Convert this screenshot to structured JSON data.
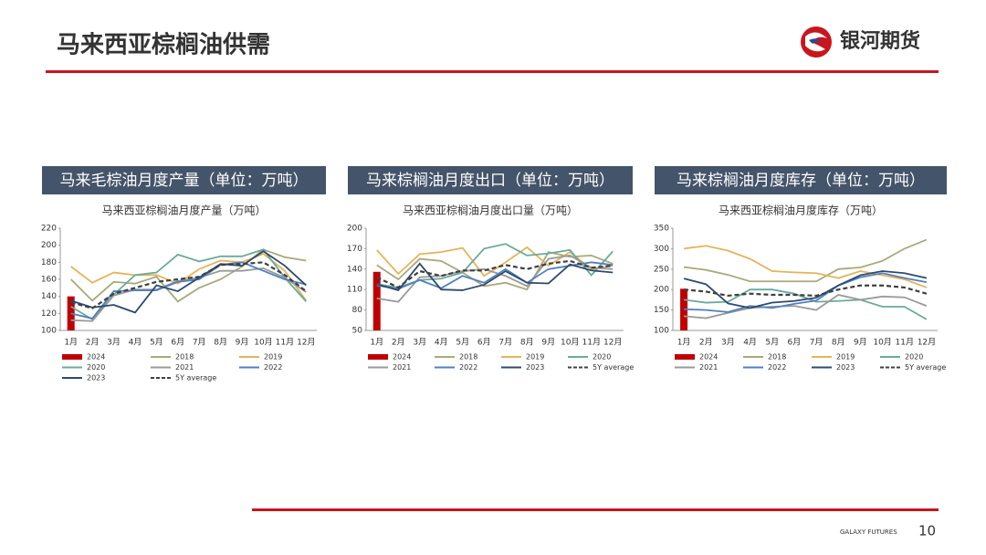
{
  "header": {
    "title": "马来西亚棕榈油供需",
    "logo": "银河期货"
  },
  "footer": {
    "brand": "GALAXY FUTURES",
    "page": "10"
  },
  "chart_data": [
    {
      "type": "line",
      "panel_title": "马来毛棕油月度产量（单位：万吨）",
      "title": "马来西亚棕榈油月度产量（万吨）",
      "categories": [
        "1月",
        "2月",
        "3月",
        "4月",
        "5月",
        "6月",
        "7月",
        "8月",
        "9月",
        "10月",
        "11月",
        "12月"
      ],
      "ylim": [
        100,
        220
      ],
      "yticks": [
        100,
        120,
        140,
        160,
        180,
        200,
        220
      ],
      "legend_columns": 3,
      "series": [
        {
          "name": "2024",
          "color": "#c00000",
          "mark": "bar",
          "values": [
            140,
            null,
            null,
            null,
            null,
            null,
            null,
            null,
            null,
            null,
            null,
            null
          ]
        },
        {
          "name": "2018",
          "color": "#a9a97a",
          "values": [
            160,
            135,
            157,
            155,
            163,
            134,
            150,
            160,
            175,
            195,
            186,
            182
          ]
        },
        {
          "name": "2019",
          "color": "#e4b45a",
          "values": [
            175,
            156,
            168,
            165,
            165,
            155,
            172,
            182,
            180,
            190,
            170,
            135
          ]
        },
        {
          "name": "2020",
          "color": "#6aab9c",
          "values": [
            128,
            113,
            142,
            165,
            168,
            189,
            181,
            187,
            187,
            195,
            162,
            134
          ]
        },
        {
          "name": "2021",
          "color": "#9a9a9a",
          "values": [
            112,
            111,
            141,
            148,
            148,
            158,
            162,
            170,
            170,
            173,
            162,
            145
          ]
        },
        {
          "name": "2022",
          "color": "#4f81bd",
          "values": [
            120,
            114,
            146,
            147,
            147,
            157,
            160,
            177,
            180,
            170,
            160,
            154
          ]
        },
        {
          "name": "2023",
          "color": "#2e4a6e",
          "values": [
            135,
            127,
            130,
            121,
            153,
            146,
            162,
            178,
            176,
            193,
            176,
            153
          ]
        },
        {
          "name": "5Y average",
          "color": "#404040",
          "dash": true,
          "values": [
            133,
            126,
            143,
            150,
            157,
            160,
            163,
            177,
            178,
            180,
            165,
            146
          ]
        }
      ]
    },
    {
      "type": "line",
      "panel_title": "马来棕榈油月度出口（单位：万吨）",
      "title": "马来西亚棕榈油月度出口量（万吨）",
      "categories": [
        "1月",
        "2月",
        "3月",
        "4月",
        "5月",
        "6月",
        "7月",
        "8月",
        "9月",
        "10月",
        "11月",
        "12月"
      ],
      "ylim": [
        50,
        200
      ],
      "yticks": [
        50,
        80,
        110,
        140,
        170,
        200
      ],
      "legend_columns": 4,
      "series": [
        {
          "name": "2024",
          "color": "#c00000",
          "mark": "bar",
          "values": [
            136,
            null,
            null,
            null,
            null,
            null,
            null,
            null,
            null,
            null,
            null,
            null
          ]
        },
        {
          "name": "2018",
          "color": "#a9a97a",
          "values": [
            146,
            125,
            155,
            152,
            135,
            115,
            120,
            110,
            165,
            158,
            160,
            148
          ]
        },
        {
          "name": "2019",
          "color": "#e4b45a",
          "values": [
            168,
            133,
            162,
            165,
            171,
            130,
            150,
            172,
            145,
            165,
            140,
            145
          ]
        },
        {
          "name": "2020",
          "color": "#6aab9c",
          "values": [
            118,
            113,
            124,
            126,
            135,
            170,
            177,
            160,
            163,
            168,
            131,
            166
          ]
        },
        {
          "name": "2021",
          "color": "#9a9a9a",
          "values": [
            97,
            92,
            128,
            130,
            137,
            140,
            130,
            115,
            155,
            160,
            142,
            140
          ]
        },
        {
          "name": "2022",
          "color": "#4f81bd",
          "values": [
            116,
            111,
            124,
            112,
            130,
            120,
            140,
            120,
            140,
            145,
            150,
            146
          ]
        },
        {
          "name": "2023",
          "color": "#2e4a6e",
          "values": [
            118,
            109,
            148,
            110,
            109,
            117,
            137,
            120,
            119,
            147,
            138,
            135
          ]
        },
        {
          "name": "5Y average",
          "color": "#404040",
          "dash": true,
          "values": [
            128,
            113,
            137,
            130,
            138,
            138,
            146,
            140,
            148,
            152,
            142,
            145
          ]
        }
      ]
    },
    {
      "type": "line",
      "panel_title": "马来棕榈油月度库存（单位：万吨）",
      "title": "马来西亚棕榈油月度库存（万吨）",
      "categories": [
        "1月",
        "2月",
        "3月",
        "4月",
        "5月",
        "6月",
        "7月",
        "8月",
        "9月",
        "10月",
        "11月",
        "12月"
      ],
      "ylim": [
        100,
        350
      ],
      "yticks": [
        100,
        150,
        200,
        250,
        300,
        350
      ],
      "legend_columns": 4,
      "series": [
        {
          "name": "2024",
          "color": "#c00000",
          "mark": "bar",
          "values": [
            202,
            null,
            null,
            null,
            null,
            null,
            null,
            null,
            null,
            null,
            null,
            null
          ]
        },
        {
          "name": "2018",
          "color": "#a9a97a",
          "values": [
            255,
            248,
            236,
            220,
            220,
            220,
            220,
            250,
            254,
            270,
            300,
            322
          ]
        },
        {
          "name": "2019",
          "color": "#e4b45a",
          "values": [
            300,
            307,
            295,
            275,
            245,
            242,
            240,
            228,
            245,
            235,
            225,
            205
          ]
        },
        {
          "name": "2020",
          "color": "#6aab9c",
          "values": [
            175,
            168,
            170,
            200,
            200,
            190,
            170,
            172,
            175,
            158,
            158,
            127
          ]
        },
        {
          "name": "2021",
          "color": "#9a9a9a",
          "values": [
            135,
            130,
            143,
            155,
            158,
            160,
            150,
            187,
            175,
            183,
            181,
            160
          ]
        },
        {
          "name": "2022",
          "color": "#4f81bd",
          "values": [
            152,
            150,
            145,
            160,
            155,
            165,
            173,
            210,
            230,
            240,
            228,
            218
          ]
        },
        {
          "name": "2023",
          "color": "#2e4a6e",
          "values": [
            227,
            213,
            166,
            155,
            168,
            172,
            180,
            210,
            235,
            245,
            240,
            228
          ]
        },
        {
          "name": "5Y average",
          "color": "#404040",
          "dash": true,
          "values": [
            200,
            195,
            185,
            190,
            187,
            187,
            185,
            200,
            210,
            210,
            205,
            190
          ]
        }
      ]
    }
  ]
}
